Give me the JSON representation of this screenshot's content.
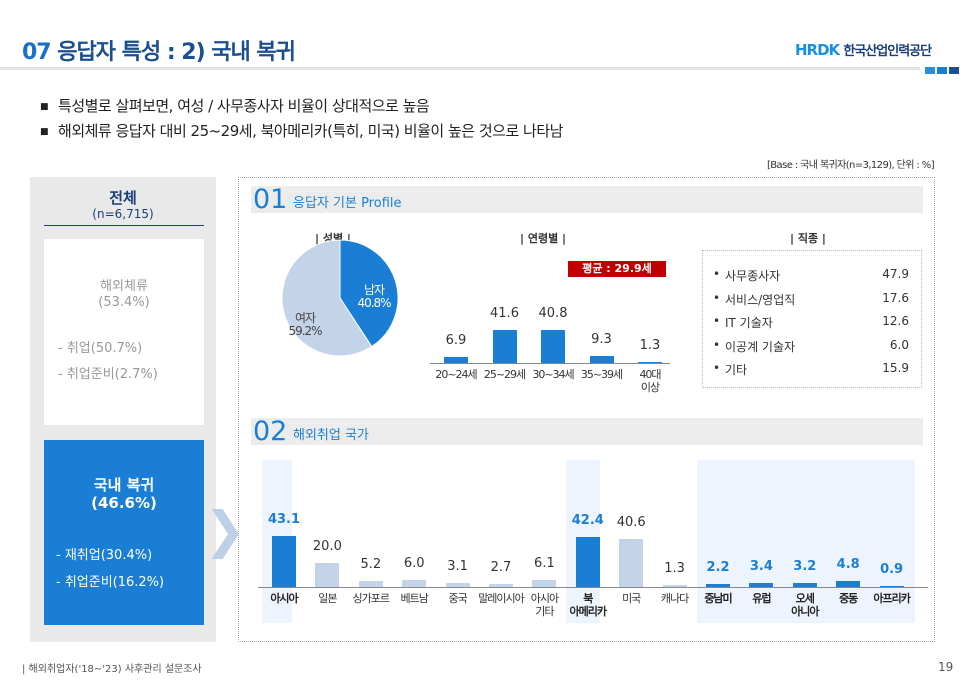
{
  "header": {
    "title_num": "07",
    "title": "응답자 특성 : 2) 국내 복귀",
    "logo_mark": "HRDK",
    "logo_text": "한국산업인력공단",
    "brand_colors": [
      "#2a8fd8",
      "#1a7fd4",
      "#1b4f8f"
    ]
  },
  "bullets": [
    "특성별로 살펴보면, 여성 / 사무종사자  비율이 상대적으로 높음",
    "해외체류 응답자 대비 25~29세, 북아메리카(특히, 미국) 비율이 높은 것으로 나타남"
  ],
  "base_note": "[Base : 국내 복귀자(n=3,129), 단위 : %]",
  "left_panel": {
    "title": "전체",
    "n": "(n=6,715)",
    "overseas": {
      "label": "해외체류",
      "pct": "(53.4%)",
      "items": [
        "- 취업(50.7%)",
        "- 취업준비(2.7%)"
      ]
    },
    "domestic": {
      "label": "국내 복귀",
      "pct": "(46.6%)",
      "items": [
        "- 재취업(30.4%)",
        "- 취업준비(16.2%)"
      ]
    }
  },
  "section1": {
    "num": "01",
    "title": "응답자 기본 Profile",
    "gender_title": "| 성별 |",
    "age_title": "| 연령별 |",
    "job_title": "| 직종 |",
    "avg_badge": "평균 : 29.9세"
  },
  "section2": {
    "num": "02",
    "title": "해외취업 국가"
  },
  "chart_data": [
    {
      "type": "pie",
      "title": "성별",
      "slices": [
        {
          "name": "남자",
          "value": 40.8,
          "label": "40.8%",
          "color": "#1a7fd4"
        },
        {
          "name": "여자",
          "value": 59.2,
          "label": "59.2%",
          "color": "#c3d3e8"
        }
      ]
    },
    {
      "type": "bar",
      "title": "연령별",
      "categories": [
        "20~24세",
        "25~29세",
        "30~34세",
        "35~39세",
        "40대\n이상"
      ],
      "values": [
        6.9,
        41.6,
        40.8,
        9.3,
        1.3
      ],
      "value_labels": [
        "6.9",
        "41.6",
        "40.8",
        "9.3",
        "1.3"
      ],
      "color": "#1a7fd4"
    },
    {
      "type": "table",
      "title": "직종",
      "rows": [
        {
          "name": "사무종사자",
          "value": "47.9"
        },
        {
          "name": "서비스/영업직",
          "value": "17.6"
        },
        {
          "name": "IT 기술자",
          "value": "12.6"
        },
        {
          "name": "이공계 기술자",
          "value": "6.0"
        },
        {
          "name": "기타",
          "value": "15.9"
        }
      ]
    },
    {
      "type": "bar",
      "title": "해외취업 국가",
      "categories": [
        "아시아",
        "일본",
        "싱가포르",
        "베트남",
        "중국",
        "말레이시아",
        "아시아\n기타",
        "북\n아메리카",
        "미국",
        "캐나다",
        "중남미",
        "유럽",
        "오세\n아니아",
        "중동",
        "아프리카"
      ],
      "values": [
        43.1,
        20.0,
        5.2,
        6.0,
        3.1,
        2.7,
        6.1,
        42.4,
        40.6,
        1.3,
        2.2,
        3.4,
        3.2,
        4.8,
        0.9
      ],
      "value_labels": [
        "43.1",
        "20.0",
        "5.2",
        "6.0",
        "3.1",
        "2.7",
        "6.1",
        "42.4",
        "40.6",
        "1.3",
        "2.2",
        "3.4",
        "3.2",
        "4.8",
        "0.9"
      ],
      "highlight": [
        true,
        false,
        false,
        false,
        false,
        false,
        false,
        true,
        false,
        false,
        true,
        true,
        true,
        true,
        true
      ]
    }
  ],
  "footer": {
    "source": "| 해외취업자('18~'23) 사후관리 설문조사",
    "page": "19"
  }
}
